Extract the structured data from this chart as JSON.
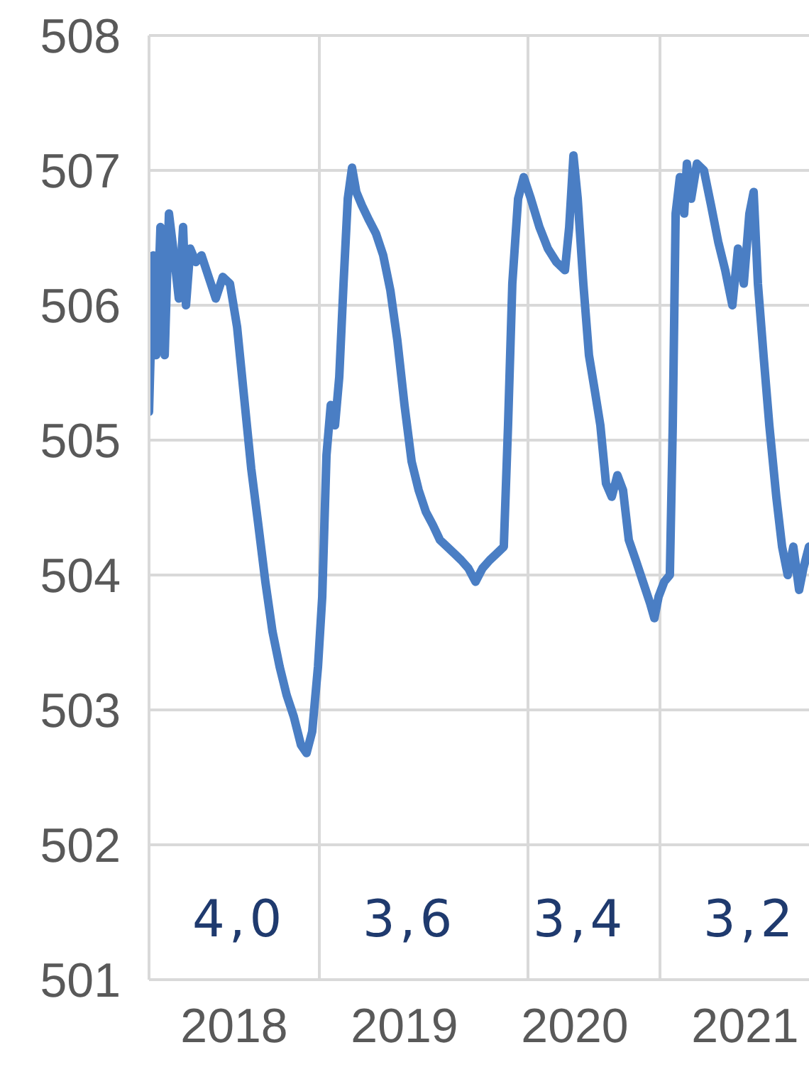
{
  "chart_data": {
    "type": "line",
    "marker": "none",
    "line_style": "solid",
    "grid": "y",
    "legend": false,
    "x": [
      2018,
      2018.025,
      2018.042,
      2018.067,
      2018.092,
      2018.117,
      2018.142,
      2018.175,
      2018.2,
      2018.217,
      2018.242,
      2018.275,
      2018.308,
      2018.35,
      2018.392,
      2018.433,
      2018.475,
      2018.517,
      2018.558,
      2018.6,
      2018.642,
      2018.683,
      2018.725,
      2018.767,
      2018.808,
      2018.85,
      2018.892,
      2018.925,
      2018.958,
      2018.992,
      2019.017,
      2019.042,
      2019.067,
      2019.092,
      2019.117,
      2019.142,
      2019.167,
      2019.192,
      2019.217,
      2019.25,
      2019.292,
      2019.333,
      2019.375,
      2019.417,
      2019.458,
      2019.5,
      2019.542,
      2019.583,
      2019.625,
      2019.667,
      2019.708,
      2019.75,
      2019.792,
      2019.833,
      2019.875,
      2019.917,
      2019.958,
      2020,
      2020.042,
      2020.083,
      2020.108,
      2020.133,
      2020.167,
      2020.2,
      2020.242,
      2020.292,
      2020.342,
      2020.392,
      2020.442,
      2020.467,
      2020.492,
      2020.517,
      2020.55,
      2020.583,
      2020.617,
      2020.65,
      2020.683,
      2020.717,
      2020.75,
      2020.783,
      2020.817,
      2020.858,
      2020.9,
      2020.942,
      2020.967,
      2020.992,
      2021.025,
      2021.058,
      2021.075,
      2021.092,
      2021.117,
      2021.142,
      2021.158,
      2021.183,
      2021.217,
      2021.258,
      2021.3,
      2021.342,
      2021.383,
      2021.425,
      2021.458,
      2021.492,
      2021.525,
      2021.55,
      2021.575,
      2021.608,
      2021.642,
      2021.683,
      2021.717,
      2021.75,
      2021.783,
      2021.817,
      2021.842,
      2021.875
    ],
    "series": [
      {
        "color": "#4a7ec4",
        "values": [
          505.21,
          506.37,
          505.63,
          506.58,
          505.63,
          506.68,
          506.42,
          506.05,
          506.58,
          506.0,
          506.42,
          506.32,
          506.37,
          506.21,
          506.05,
          506.21,
          506.16,
          505.84,
          505.32,
          504.79,
          504.37,
          503.95,
          503.58,
          503.32,
          503.11,
          502.95,
          502.74,
          502.68,
          502.84,
          503.32,
          503.84,
          504.89,
          505.26,
          505.11,
          505.47,
          506.16,
          506.79,
          507.02,
          506.84,
          506.74,
          506.63,
          506.53,
          506.37,
          506.11,
          505.74,
          505.26,
          504.84,
          504.63,
          504.47,
          504.37,
          504.26,
          504.21,
          504.16,
          504.11,
          504.05,
          503.95,
          504.05,
          504.11,
          504.16,
          504.21,
          505.11,
          506.16,
          506.79,
          506.95,
          506.79,
          506.58,
          506.42,
          506.32,
          506.26,
          506.58,
          507.11,
          506.79,
          506.16,
          505.63,
          505.37,
          505.11,
          504.68,
          504.58,
          504.74,
          504.63,
          504.26,
          504.11,
          503.95,
          503.79,
          503.68,
          503.84,
          503.95,
          504.0,
          505.11,
          506.68,
          506.95,
          506.68,
          507.05,
          506.79,
          507.05,
          507.0,
          506.74,
          506.47,
          506.26,
          506.0,
          506.42,
          506.16,
          506.68,
          506.84,
          506.16,
          505.63,
          505.11,
          504.58,
          504.21,
          504.0,
          504.21,
          503.89,
          504.05,
          504.21
        ]
      }
    ],
    "xlim": [
      2018,
      2021.875
    ],
    "xticks": [
      {
        "value": 2018.5,
        "label": "2018"
      },
      {
        "value": 2019.5,
        "label": "2019"
      },
      {
        "value": 2020.5,
        "label": "2020"
      },
      {
        "value": 2021.5,
        "label": "2021"
      }
    ],
    "ylim": [
      501,
      508
    ],
    "yticks": [
      501,
      502,
      503,
      504,
      505,
      506,
      507,
      508
    ],
    "ref_lines": [
      {
        "axis": "x",
        "value": 2019,
        "color": "#d9d9d9"
      },
      {
        "axis": "x",
        "value": 2020.225,
        "color": "#d9d9d9"
      },
      {
        "axis": "x",
        "value": 2021,
        "color": "#d9d9d9"
      }
    ],
    "annotations": [
      "4,0",
      "3,6",
      "3,4",
      "3,2"
    ]
  }
}
